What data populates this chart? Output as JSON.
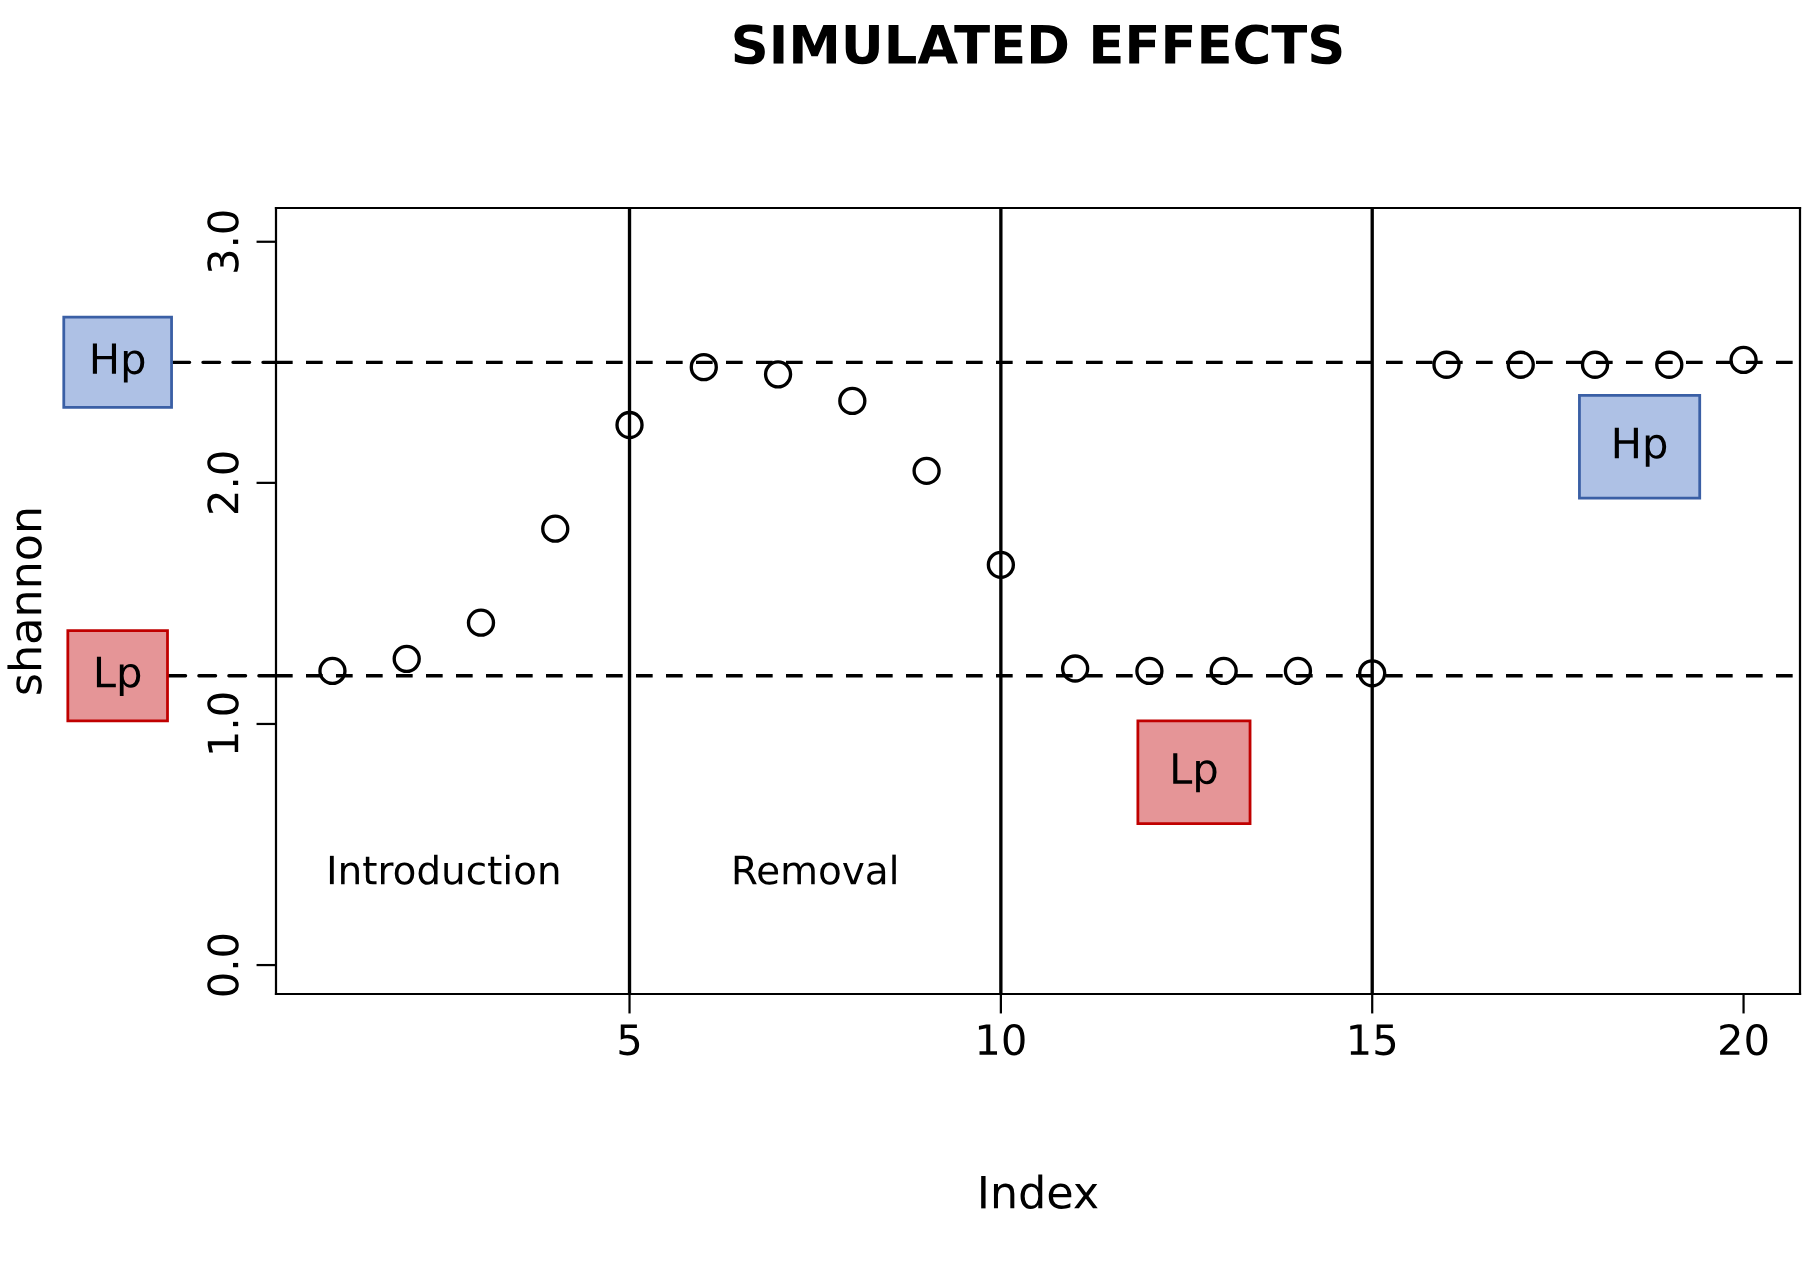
{
  "chart_data": {
    "type": "scatter",
    "title": "SIMULATED EFFECTS",
    "xlabel": "Index",
    "ylabel": "shannon",
    "x": [
      1,
      2,
      3,
      4,
      5,
      6,
      7,
      8,
      9,
      10,
      11,
      12,
      13,
      14,
      15,
      16,
      17,
      18,
      19,
      20
    ],
    "values": [
      1.22,
      1.27,
      1.42,
      1.81,
      2.24,
      2.48,
      2.45,
      2.34,
      2.05,
      1.66,
      1.23,
      1.22,
      1.22,
      1.22,
      1.21,
      2.49,
      2.49,
      2.49,
      2.49,
      2.51
    ],
    "marker": "circle",
    "color": "#000000",
    "xlim": [
      0.24,
      20.76
    ],
    "ylim": [
      -0.12,
      3.14
    ],
    "xticks": [
      5,
      10,
      15,
      20
    ],
    "yticks": [
      {
        "value": 0,
        "label": "0.0"
      },
      {
        "value": 1,
        "label": "1.0"
      },
      {
        "value": 2,
        "label": "2.0"
      },
      {
        "value": 3,
        "label": "3.0"
      }
    ],
    "grid": false,
    "legend": false,
    "ref_lines": [
      {
        "axis": "y",
        "value": 2.5,
        "label": "Hp",
        "line_style": "dashed"
      },
      {
        "axis": "y",
        "value": 1.2,
        "label": "Lp",
        "line_style": "dashed"
      },
      {
        "axis": "x",
        "value": 5,
        "line_style": "solid"
      },
      {
        "axis": "x",
        "value": 10,
        "line_style": "solid"
      },
      {
        "axis": "x",
        "value": 15,
        "line_style": "solid"
      }
    ],
    "annotations": [
      "Introduction",
      "Removal",
      "Lp",
      "Hp"
    ]
  }
}
